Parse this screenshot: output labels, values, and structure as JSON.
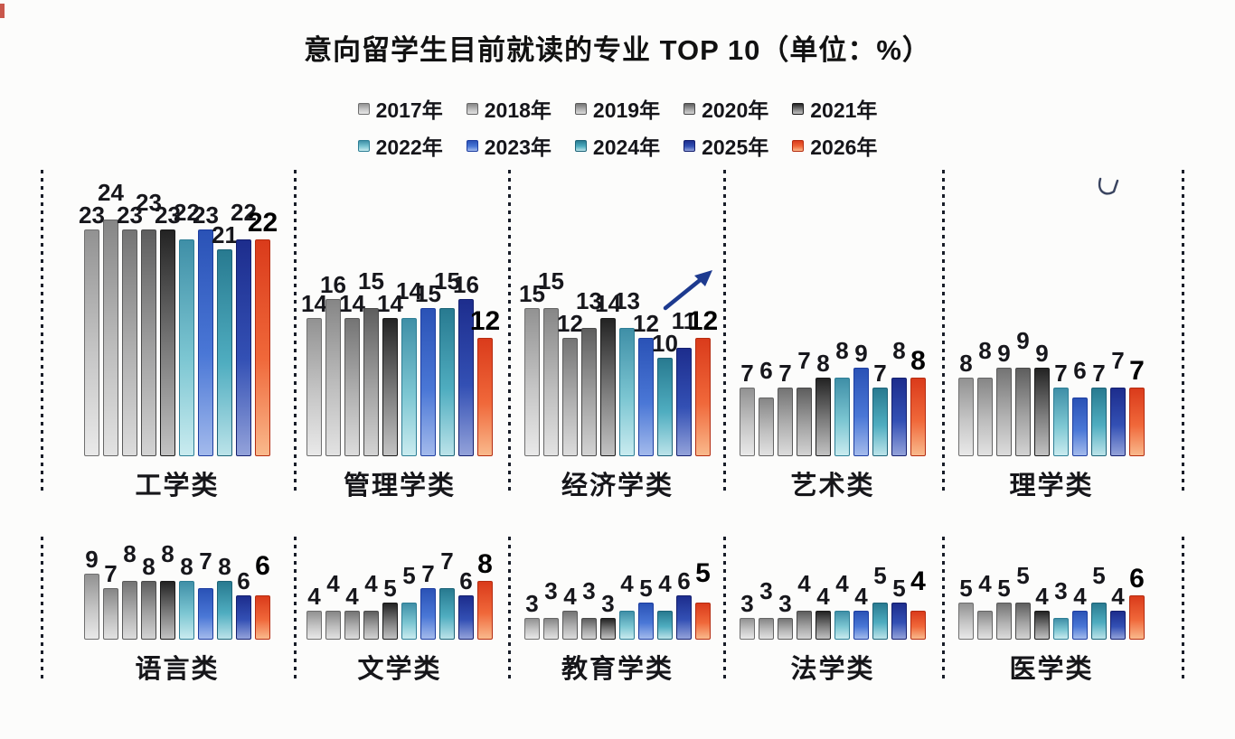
{
  "chart_data": {
    "type": "bar",
    "title": "意向留学生目前就读的专业 TOP 10（单位：%）",
    "unit": "%",
    "value_range": [
      0,
      24
    ],
    "legend_position": "top-center",
    "grid": false,
    "emphasis_series": "2026年",
    "series": [
      {
        "label": "2017年",
        "colors": [
          "#929292",
          "#c6c6c6",
          "#e9e9e9"
        ],
        "border": "#6f6f6f"
      },
      {
        "label": "2018年",
        "colors": [
          "#868686",
          "#bdbdbd",
          "#e2e2e2"
        ],
        "border": "#656565"
      },
      {
        "label": "2019年",
        "colors": [
          "#747474",
          "#b1b1b1",
          "#dcdcdc"
        ],
        "border": "#5a5a5a"
      },
      {
        "label": "2020年",
        "colors": [
          "#5e5e5e",
          "#a3a3a3",
          "#d3d3d3"
        ],
        "border": "#4a4a4a"
      },
      {
        "label": "2021年",
        "colors": [
          "#232323",
          "#7e7e7e",
          "#c2c2c2"
        ],
        "border": "#1a1a1a"
      },
      {
        "label": "2022年",
        "colors": [
          "#3f8fa7",
          "#7cc6d2",
          "#c9ebef"
        ],
        "border": "#2d7e95"
      },
      {
        "label": "2023年",
        "colors": [
          "#2a52b6",
          "#4a77d6",
          "#a3baec"
        ],
        "border": "#1d3da0"
      },
      {
        "label": "2024年",
        "colors": [
          "#287a90",
          "#4fadc0",
          "#bbe3e9"
        ],
        "border": "#1d6478"
      },
      {
        "label": "2025年",
        "colors": [
          "#1d2d8d",
          "#3350b4",
          "#93a2da"
        ],
        "border": "#141f6e"
      },
      {
        "label": "2026年",
        "colors": [
          "#da3b1b",
          "#f0683a",
          "#f9b98c"
        ],
        "border": "#b52c10"
      }
    ],
    "groups": [
      {
        "category": "工学类",
        "values": [
          23,
          24,
          23,
          23,
          23,
          22,
          23,
          21,
          22,
          22
        ]
      },
      {
        "category": "管理学类",
        "values": [
          14,
          16,
          14,
          15,
          14,
          14,
          15,
          15,
          16,
          12
        ]
      },
      {
        "category": "经济学类",
        "values": [
          15,
          15,
          12,
          13,
          14,
          13,
          12,
          10,
          11,
          12
        ],
        "annotation": "rising-arrow"
      },
      {
        "category": "艺术类",
        "values": [
          7,
          6,
          7,
          7,
          8,
          8,
          9,
          7,
          8,
          8
        ]
      },
      {
        "category": "理学类",
        "values": [
          8,
          8,
          9,
          9,
          9,
          7,
          6,
          7,
          7,
          7
        ]
      },
      {
        "category": "语言类",
        "values": [
          9,
          7,
          8,
          8,
          8,
          8,
          7,
          8,
          6,
          6
        ]
      },
      {
        "category": "文学类",
        "values": [
          4,
          4,
          4,
          4,
          5,
          5,
          7,
          7,
          6,
          8
        ]
      },
      {
        "category": "教育学类",
        "values": [
          3,
          3,
          4,
          3,
          3,
          4,
          5,
          4,
          6,
          5
        ]
      },
      {
        "category": "法学类",
        "values": [
          3,
          3,
          3,
          4,
          4,
          4,
          4,
          5,
          5,
          4
        ]
      },
      {
        "category": "医学类",
        "values": [
          5,
          4,
          5,
          5,
          4,
          3,
          4,
          5,
          4,
          6
        ]
      }
    ],
    "annotations": [
      {
        "group": "经济学类",
        "type": "rising-arrow",
        "color": "#1d3a8f"
      }
    ]
  }
}
